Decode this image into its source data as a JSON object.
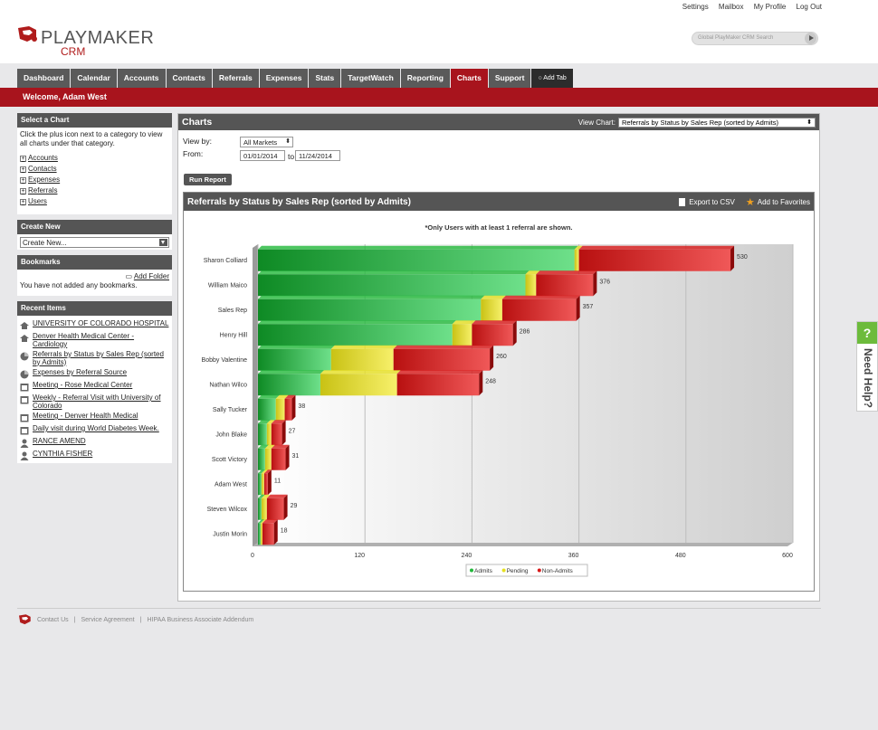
{
  "top_links": [
    "Settings",
    "Mailbox",
    "My Profile",
    "Log Out"
  ],
  "brand": {
    "name": "PLAYMAKER",
    "sub": "CRM"
  },
  "global_search": {
    "placeholder": "Global PlayMaker CRM Search"
  },
  "tabs": [
    "Dashboard",
    "Calendar",
    "Accounts",
    "Contacts",
    "Referrals",
    "Expenses",
    "Stats",
    "TargetWatch",
    "Reporting",
    "Charts",
    "Support"
  ],
  "add_tab": "Add Tab",
  "welcome": "Welcome, Adam West",
  "select_chart": {
    "title": "Select a Chart",
    "intro": "Click the plus icon next to a category to view all charts under that category.",
    "categories": [
      "Accounts",
      "Contacts",
      "Expenses",
      "Referrals",
      "Users"
    ]
  },
  "create_new": {
    "title": "Create New",
    "value": "Create New..."
  },
  "bookmarks": {
    "title": "Bookmarks",
    "add_folder": "Add Folder",
    "empty": "You have not added any bookmarks."
  },
  "recent": {
    "title": "Recent Items",
    "items": [
      {
        "icon": "building-icon",
        "label": "UNIVERSITY OF COLORADO HOSPITAL"
      },
      {
        "icon": "building-icon",
        "label": "Denver Health Medical Center - Cardiology"
      },
      {
        "icon": "chart-icon",
        "label": "Referrals by Status by Sales Rep (sorted by Admits)"
      },
      {
        "icon": "chart-icon",
        "label": "Expenses by Referral Source"
      },
      {
        "icon": "calendar-icon",
        "label": "Meeting - Rose Medical Center"
      },
      {
        "icon": "calendar-icon",
        "label": "Weekly - Referral Visit with University of Colorado"
      },
      {
        "icon": "calendar-icon",
        "label": "Meeting - Denver Health Medical"
      },
      {
        "icon": "calendar-icon",
        "label": "Daily visit during World Diabetes Week."
      },
      {
        "icon": "person-icon",
        "label": "RANCE AMEND"
      },
      {
        "icon": "person-icon",
        "label": "CYNTHIA FISHER"
      }
    ]
  },
  "charts_panel": {
    "title": "Charts",
    "view_chart_label": "View Chart:",
    "view_chart_value": "Referrals by Status by Sales Rep (sorted by Admits)",
    "view_by_label": "View by:",
    "view_by_value": "All Markets",
    "from_label": "From:",
    "from_date": "01/01/2014",
    "to_label": "to",
    "to_date": "11/24/2014",
    "run_report": "Run Report",
    "export": "Export to CSV",
    "favorites": "Add to Favorites"
  },
  "chart_data": {
    "type": "bar",
    "orientation": "horizontal",
    "stacked": true,
    "title": "Referrals by Status by Sales Rep (sorted by Admits)",
    "note": "*Only Users with at least 1 referral are shown.",
    "categories": [
      "Sharon Colliard",
      "William Maico",
      "Sales Rep",
      "Henry Hill",
      "Bobby Valentine",
      "Nathan Wilco",
      "Sally Tucker",
      "John Blake",
      "Scott Victory",
      "Adam West",
      "Steven Wilcox",
      "Justin Morin"
    ],
    "totals": [
      530,
      376,
      357,
      286,
      260,
      248,
      38,
      27,
      31,
      11,
      29,
      18
    ],
    "series": [
      {
        "name": "Admits",
        "color": "#22b83a",
        "values": [
          355,
          300,
          250,
          218,
          82,
          70,
          20,
          10,
          8,
          4,
          4,
          3
        ]
      },
      {
        "name": "Pending",
        "color": "#e6e020",
        "values": [
          5,
          12,
          24,
          22,
          70,
          86,
          10,
          5,
          7,
          3,
          6,
          2
        ]
      },
      {
        "name": "Non-Admits",
        "color": "#d81818",
        "values": [
          170,
          64,
          83,
          46,
          108,
          92,
          8,
          12,
          16,
          4,
          19,
          13
        ]
      }
    ],
    "xlim": [
      0,
      600
    ],
    "xticks": [
      0,
      120,
      240,
      360,
      480,
      600
    ],
    "grid": true,
    "legend": "bottom"
  },
  "footer": {
    "links": [
      "Contact Us",
      "Service Agreement",
      "HIPAA Business Associate Addendum"
    ]
  },
  "help": {
    "label": "Need Help?",
    "q": "?"
  }
}
